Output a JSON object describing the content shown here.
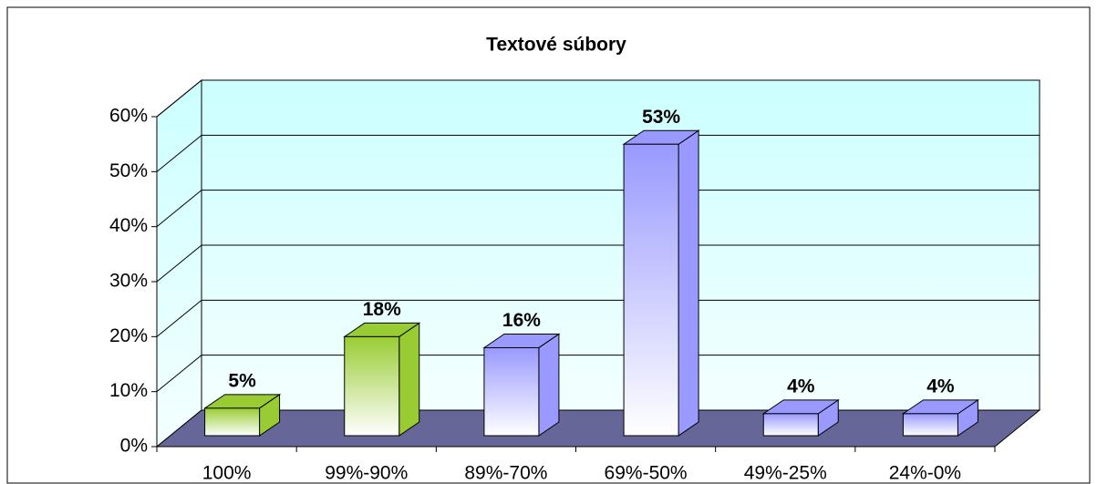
{
  "chart_data": {
    "type": "bar3d",
    "title": "Textové súbory",
    "categories": [
      "100%",
      "99%-90%",
      "89%-70%",
      "69%-50%",
      "49%-25%",
      "24%-0%"
    ],
    "values": [
      5,
      18,
      16,
      53,
      4,
      4
    ],
    "value_labels": [
      "5%",
      "18%",
      "16%",
      "53%",
      "4%",
      "4%"
    ],
    "colors": [
      "#99cc33",
      "#99cc33",
      "#9999ff",
      "#9999ff",
      "#9999ff",
      "#9999ff"
    ],
    "ylim": [
      0,
      60
    ],
    "yticks": [
      {
        "value": 0,
        "label": "0%"
      },
      {
        "value": 10,
        "label": "10%"
      },
      {
        "value": 20,
        "label": "20%"
      },
      {
        "value": 30,
        "label": "30%"
      },
      {
        "value": 40,
        "label": "40%"
      },
      {
        "value": 50,
        "label": "50%"
      },
      {
        "value": 60,
        "label": "60%"
      }
    ],
    "grid": true
  }
}
